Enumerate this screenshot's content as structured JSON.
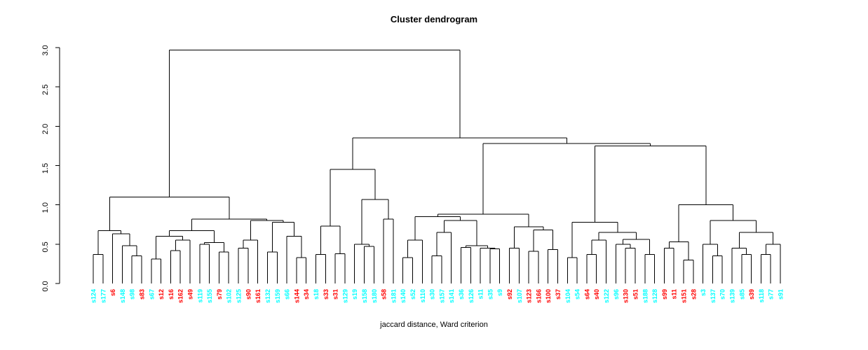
{
  "chart_data": {
    "type": "dendrogram",
    "title": "Cluster dendrogram",
    "xlabel": "jaccard distance, Ward criterion",
    "ylabel": "",
    "ylim": [
      0,
      3
    ],
    "yticks": [
      0,
      0.5,
      1,
      1.5,
      2,
      2.5,
      3
    ],
    "grid": "off",
    "line_color": "#000000",
    "leaf_colors": {
      "cyan": "#00FFFF",
      "red": "#FF0000"
    },
    "leaves": [
      {
        "label": "s124",
        "color": "cyan"
      },
      {
        "label": "s177",
        "color": "cyan"
      },
      {
        "label": "s6",
        "color": "red"
      },
      {
        "label": "s148",
        "color": "cyan"
      },
      {
        "label": "s98",
        "color": "cyan"
      },
      {
        "label": "s83",
        "color": "red"
      },
      {
        "label": "s67",
        "color": "cyan"
      },
      {
        "label": "s12",
        "color": "red"
      },
      {
        "label": "s16",
        "color": "red"
      },
      {
        "label": "s162",
        "color": "red"
      },
      {
        "label": "s49",
        "color": "red"
      },
      {
        "label": "s119",
        "color": "cyan"
      },
      {
        "label": "s155",
        "color": "cyan"
      },
      {
        "label": "s79",
        "color": "red"
      },
      {
        "label": "s102",
        "color": "cyan"
      },
      {
        "label": "s125",
        "color": "cyan"
      },
      {
        "label": "s90",
        "color": "red"
      },
      {
        "label": "s161",
        "color": "red"
      },
      {
        "label": "s132",
        "color": "cyan"
      },
      {
        "label": "s159",
        "color": "cyan"
      },
      {
        "label": "s66",
        "color": "cyan"
      },
      {
        "label": "s144",
        "color": "red"
      },
      {
        "label": "s34",
        "color": "red"
      },
      {
        "label": "s18",
        "color": "cyan"
      },
      {
        "label": "s33",
        "color": "red"
      },
      {
        "label": "s31",
        "color": "red"
      },
      {
        "label": "s129",
        "color": "cyan"
      },
      {
        "label": "s19",
        "color": "cyan"
      },
      {
        "label": "s158",
        "color": "cyan"
      },
      {
        "label": "s180",
        "color": "cyan"
      },
      {
        "label": "s58",
        "color": "red"
      },
      {
        "label": "s181",
        "color": "cyan"
      },
      {
        "label": "s140",
        "color": "cyan"
      },
      {
        "label": "s52",
        "color": "cyan"
      },
      {
        "label": "s110",
        "color": "cyan"
      },
      {
        "label": "s30",
        "color": "cyan"
      },
      {
        "label": "s157",
        "color": "cyan"
      },
      {
        "label": "s141",
        "color": "cyan"
      },
      {
        "label": "s36",
        "color": "cyan"
      },
      {
        "label": "s126",
        "color": "cyan"
      },
      {
        "label": "s11",
        "color": "cyan"
      },
      {
        "label": "s35",
        "color": "cyan"
      },
      {
        "label": "s9",
        "color": "cyan"
      },
      {
        "label": "s92",
        "color": "red"
      },
      {
        "label": "s107",
        "color": "cyan"
      },
      {
        "label": "s123",
        "color": "red"
      },
      {
        "label": "s166",
        "color": "red"
      },
      {
        "label": "s100",
        "color": "red"
      },
      {
        "label": "s37",
        "color": "red"
      },
      {
        "label": "s104",
        "color": "cyan"
      },
      {
        "label": "s54",
        "color": "cyan"
      },
      {
        "label": "s64",
        "color": "red"
      },
      {
        "label": "s40",
        "color": "red"
      },
      {
        "label": "s122",
        "color": "cyan"
      },
      {
        "label": "s96",
        "color": "cyan"
      },
      {
        "label": "s130",
        "color": "red"
      },
      {
        "label": "s51",
        "color": "red"
      },
      {
        "label": "s188",
        "color": "cyan"
      },
      {
        "label": "s128",
        "color": "cyan"
      },
      {
        "label": "s99",
        "color": "red"
      },
      {
        "label": "s11",
        "color": "red"
      },
      {
        "label": "s151",
        "color": "red"
      },
      {
        "label": "s28",
        "color": "red"
      },
      {
        "label": "s3",
        "color": "cyan"
      },
      {
        "label": "s137",
        "color": "cyan"
      },
      {
        "label": "s70",
        "color": "cyan"
      },
      {
        "label": "s139",
        "color": "cyan"
      },
      {
        "label": "s85",
        "color": "cyan"
      },
      {
        "label": "s39",
        "color": "red"
      },
      {
        "label": "s118",
        "color": "cyan"
      },
      {
        "label": "s77",
        "color": "cyan"
      },
      {
        "label": "s91",
        "color": "cyan"
      }
    ],
    "tree": {
      "h": 2.97,
      "c": [
        {
          "h": 1.1,
          "c": [
            {
              "h": 0.67,
              "c": [
                {
                  "h": 0.37,
                  "c": [
                    0,
                    1
                  ]
                },
                {
                  "h": 0.63,
                  "c": [
                    2,
                    {
                      "h": 0.48,
                      "c": [
                        3,
                        {
                          "h": 0.35,
                          "c": [
                            4,
                            5
                          ]
                        }
                      ]
                    }
                  ]
                }
              ]
            },
            {
              "h": 0.82,
              "c": [
                {
                  "h": 0.67,
                  "c": [
                    {
                      "h": 0.6,
                      "c": [
                        {
                          "h": 0.31,
                          "c": [
                            6,
                            7
                          ]
                        },
                        {
                          "h": 0.55,
                          "c": [
                            {
                              "h": 0.42,
                              "c": [
                                8,
                                9
                              ]
                            },
                            10
                          ]
                        }
                      ]
                    },
                    {
                      "h": 0.52,
                      "c": [
                        {
                          "h": 0.5,
                          "c": [
                            11,
                            12
                          ]
                        },
                        {
                          "h": 0.4,
                          "c": [
                            13,
                            14
                          ]
                        }
                      ]
                    }
                  ]
                },
                {
                  "h": 0.8,
                  "c": [
                    {
                      "h": 0.55,
                      "c": [
                        {
                          "h": 0.45,
                          "c": [
                            15,
                            16
                          ]
                        },
                        17
                      ]
                    },
                    {
                      "h": 0.78,
                      "c": [
                        {
                          "h": 0.4,
                          "c": [
                            18,
                            19
                          ]
                        },
                        {
                          "h": 0.6,
                          "c": [
                            20,
                            {
                              "h": 0.33,
                              "c": [
                                21,
                                22
                              ]
                            }
                          ]
                        }
                      ]
                    }
                  ]
                }
              ]
            }
          ]
        },
        {
          "h": 1.85,
          "c": [
            {
              "h": 1.45,
              "c": [
                {
                  "h": 0.73,
                  "c": [
                    {
                      "h": 0.37,
                      "c": [
                        23,
                        24
                      ]
                    },
                    {
                      "h": 0.38,
                      "c": [
                        25,
                        26
                      ]
                    }
                  ]
                },
                {
                  "h": 1.07,
                  "c": [
                    {
                      "h": 0.5,
                      "c": [
                        27,
                        {
                          "h": 0.47,
                          "c": [
                            28,
                            29
                          ]
                        }
                      ]
                    },
                    {
                      "h": 0.82,
                      "c": [
                        30,
                        31
                      ]
                    }
                  ]
                }
              ]
            },
            {
              "h": 1.78,
              "c": [
                {
                  "h": 0.88,
                  "c": [
                    {
                      "h": 0.85,
                      "c": [
                        {
                          "h": 0.55,
                          "c": [
                            {
                              "h": 0.33,
                              "c": [
                                32,
                                33
                              ]
                            },
                            34
                          ]
                        },
                        {
                          "h": 0.8,
                          "c": [
                            {
                              "h": 0.65,
                              "c": [
                                {
                                  "h": 0.35,
                                  "c": [
                                    35,
                                    36
                                  ]
                                },
                                37
                              ]
                            },
                            {
                              "h": 0.48,
                              "c": [
                                {
                                  "h": 0.46,
                                  "c": [
                                    38,
                                    39
                                  ]
                                },
                                {
                                  "h": 0.45,
                                  "c": [
                                    40,
                                    {
                                      "h": 0.44,
                                      "c": [
                                        41,
                                        42
                                      ]
                                    }
                                  ]
                                }
                              ]
                            }
                          ]
                        }
                      ]
                    },
                    {
                      "h": 0.72,
                      "c": [
                        {
                          "h": 0.45,
                          "c": [
                            43,
                            44
                          ]
                        },
                        {
                          "h": 0.68,
                          "c": [
                            {
                              "h": 0.41,
                              "c": [
                                45,
                                46
                              ]
                            },
                            {
                              "h": 0.43,
                              "c": [
                                47,
                                48
                              ]
                            }
                          ]
                        }
                      ]
                    }
                  ]
                },
                {
                  "h": 1.75,
                  "c": [
                    {
                      "h": 0.78,
                      "c": [
                        {
                          "h": 0.33,
                          "c": [
                            49,
                            50
                          ]
                        },
                        {
                          "h": 0.65,
                          "c": [
                            {
                              "h": 0.55,
                              "c": [
                                {
                                  "h": 0.37,
                                  "c": [
                                    51,
                                    52
                                  ]
                                },
                                53
                              ]
                            },
                            {
                              "h": 0.56,
                              "c": [
                                {
                                  "h": 0.5,
                                  "c": [
                                    54,
                                    {
                                      "h": 0.45,
                                      "c": [
                                        55,
                                        56
                                      ]
                                    }
                                  ]
                                },
                                {
                                  "h": 0.37,
                                  "c": [
                                    57,
                                    58
                                  ]
                                }
                              ]
                            }
                          ]
                        }
                      ]
                    },
                    {
                      "h": 1.0,
                      "c": [
                        {
                          "h": 0.53,
                          "c": [
                            {
                              "h": 0.45,
                              "c": [
                                59,
                                60
                              ]
                            },
                            {
                              "h": 0.3,
                              "c": [
                                61,
                                62
                              ]
                            }
                          ]
                        },
                        {
                          "h": 0.8,
                          "c": [
                            {
                              "h": 0.5,
                              "c": [
                                63,
                                {
                                  "h": 0.35,
                                  "c": [
                                    64,
                                    65
                                  ]
                                }
                              ]
                            },
                            {
                              "h": 0.65,
                              "c": [
                                {
                                  "h": 0.45,
                                  "c": [
                                    66,
                                    {
                                      "h": 0.37,
                                      "c": [
                                        67,
                                        68
                                      ]
                                    }
                                  ]
                                },
                                {
                                  "h": 0.5,
                                  "c": [
                                    {
                                      "h": 0.37,
                                      "c": [
                                        69,
                                        70
                                      ]
                                    },
                                    71
                                  ]
                                }
                              ]
                            }
                          ]
                        }
                      ]
                    }
                  ]
                }
              ]
            }
          ]
        }
      ]
    }
  }
}
